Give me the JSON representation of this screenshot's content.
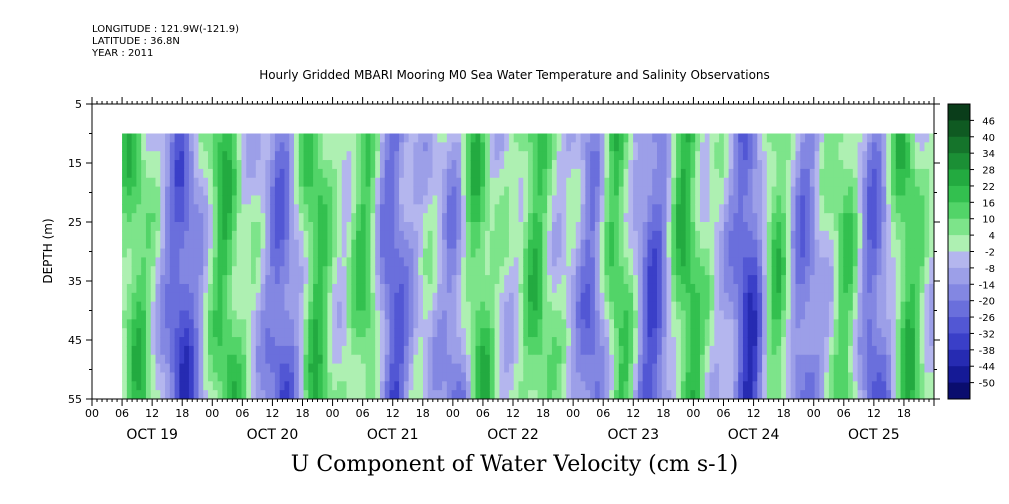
{
  "header": {
    "longitude": "LONGITUDE : 121.9W(-121.9)",
    "latitude": "LATITUDE : 36.8N",
    "year": "YEAR : 2011"
  },
  "title": "Hourly Gridded MBARI Mooring M0 Sea Water Temperature and Salinity Observations",
  "footer": "U Component of Water Velocity (cm s-1)",
  "chart_data": {
    "type": "heatmap",
    "title": "Hourly Gridded MBARI Mooring M0 Sea Water Temperature and Salinity Observations",
    "xlabel": "",
    "ylabel": "DEPTH (m)",
    "colorbar_label": "U Component of Water Velocity (cm s-1)",
    "y_range": [
      5,
      55
    ],
    "y_inverted": true,
    "y_ticks": [
      "5",
      "15",
      "25",
      "35",
      "45",
      "55"
    ],
    "data_depth_top": 10,
    "x_hour_ticks": [
      "00",
      "06",
      "12",
      "18",
      "00",
      "06",
      "12",
      "18",
      "00",
      "06",
      "12",
      "18",
      "00",
      "06",
      "12",
      "18",
      "00",
      "06",
      "12",
      "18",
      "00",
      "06",
      "12",
      "18",
      "00",
      "06",
      "12",
      "18"
    ],
    "x_day_labels": [
      "OCT 19",
      "OCT 20",
      "OCT 21",
      "OCT 22",
      "OCT 23",
      "OCT 24",
      "OCT 25"
    ],
    "x_range_hours": [
      0,
      168
    ],
    "data_start_hour": 6,
    "colorbar_levels": [
      "46",
      "40",
      "34",
      "28",
      "22",
      "16",
      "10",
      "4",
      "-2",
      "-8",
      "-14",
      "-20",
      "-26",
      "-32",
      "-38",
      "-44",
      "-50"
    ],
    "colorbar_colors": [
      "#0a3d1a",
      "#0f5a22",
      "#15742b",
      "#1b8f35",
      "#23aa40",
      "#33c04f",
      "#52d468",
      "#7de48a",
      "#aef0b2",
      "#b4b6ee",
      "#9c9fe8",
      "#8387e2",
      "#6a6fdc",
      "#5257d4",
      "#3a3fc8",
      "#262bb2",
      "#151a96",
      "#0a0d6e"
    ],
    "colorbar_unit": "cm s-1",
    "field_pattern": "alternating vertical bands of positive (green) and negative (blue) velocity, dominant negative blue bands near OCT 19 00, OCT 20 12, OCT 21 00, OCT 22 18, OCT 23 12, OCT 24 06, OCT 25 00; strong positive green near OCT 21 12, OCT 23 18, OCT 25 12 (deep)"
  }
}
